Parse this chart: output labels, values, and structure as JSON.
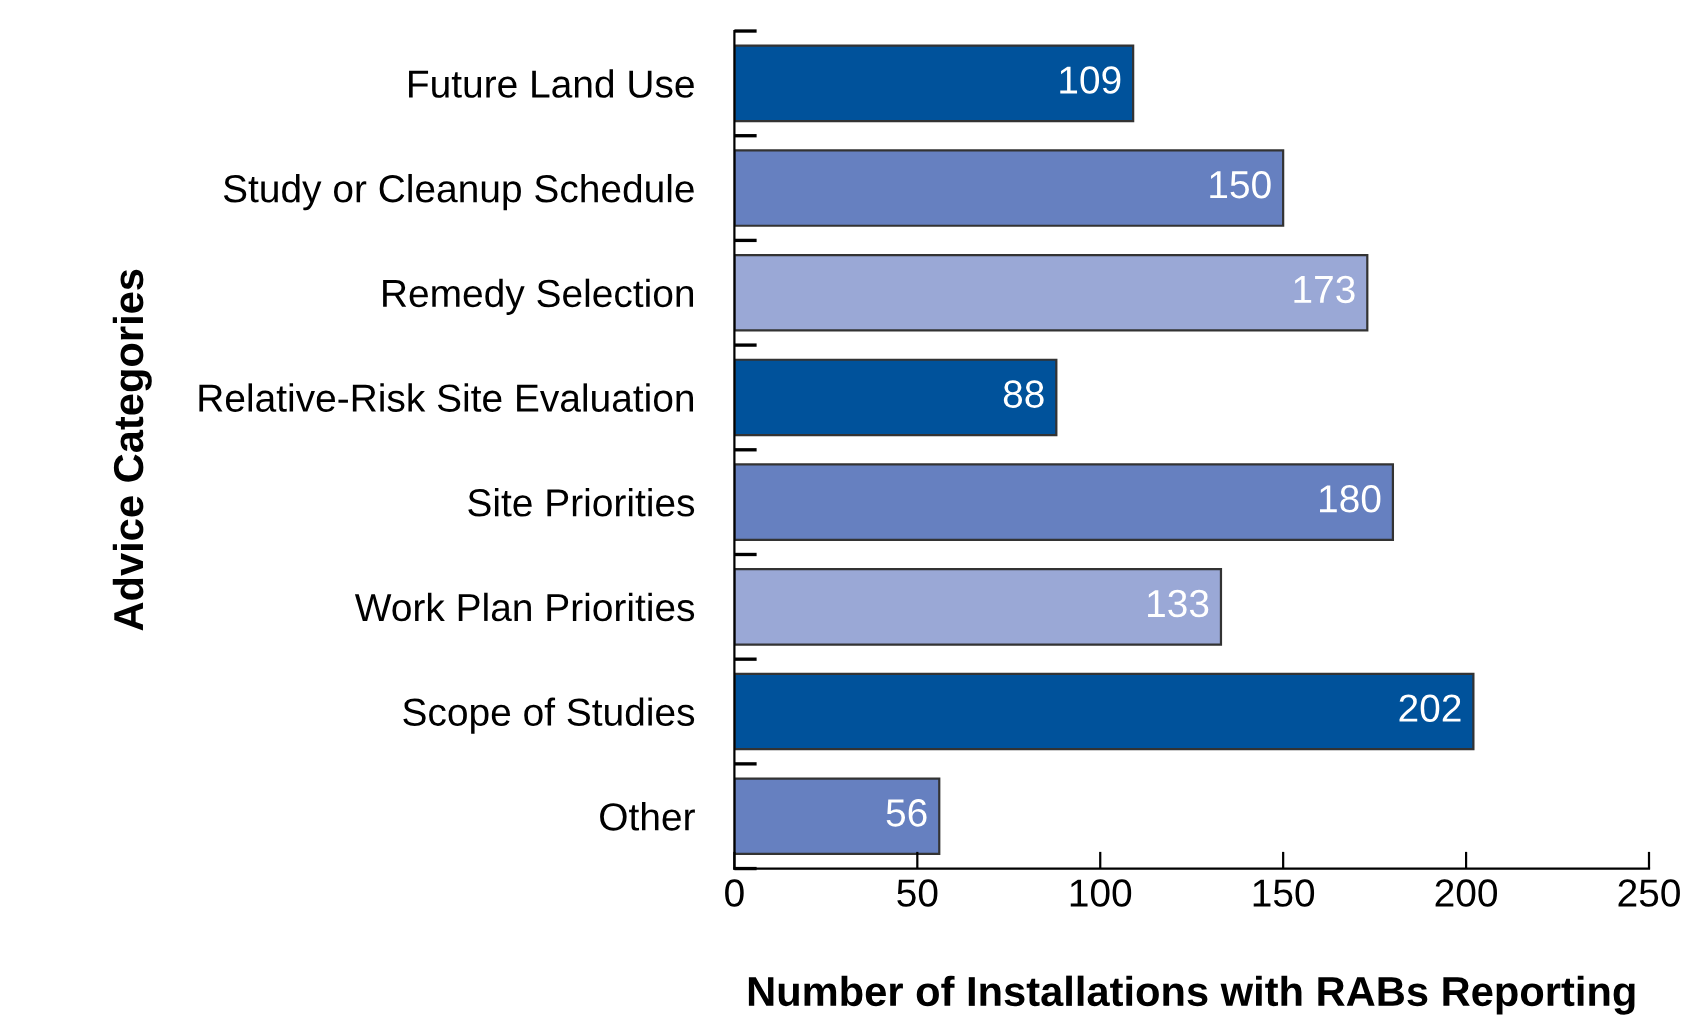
{
  "chart_data": {
    "type": "bar",
    "orientation": "horizontal",
    "xlabel": "Number of Installations with RABs Reporting",
    "ylabel": "Advice Categories",
    "categories": [
      "Future Land Use",
      "Study or Cleanup Schedule",
      "Remedy Selection",
      "Relative-Risk Site Evaluation",
      "Site Priorities",
      "Work Plan Priorities",
      "Scope of Studies",
      "Other"
    ],
    "values": [
      109,
      150,
      173,
      88,
      180,
      133,
      202,
      56
    ],
    "colors": [
      "#00529b",
      "#6680c0",
      "#9aa8d6",
      "#00529b",
      "#6680c0",
      "#9aa8d6",
      "#00529b",
      "#6680c0"
    ],
    "xlim": [
      0,
      250
    ],
    "xticks": [
      0,
      50,
      100,
      150,
      200,
      250
    ],
    "grid": false,
    "data_labels": true
  }
}
